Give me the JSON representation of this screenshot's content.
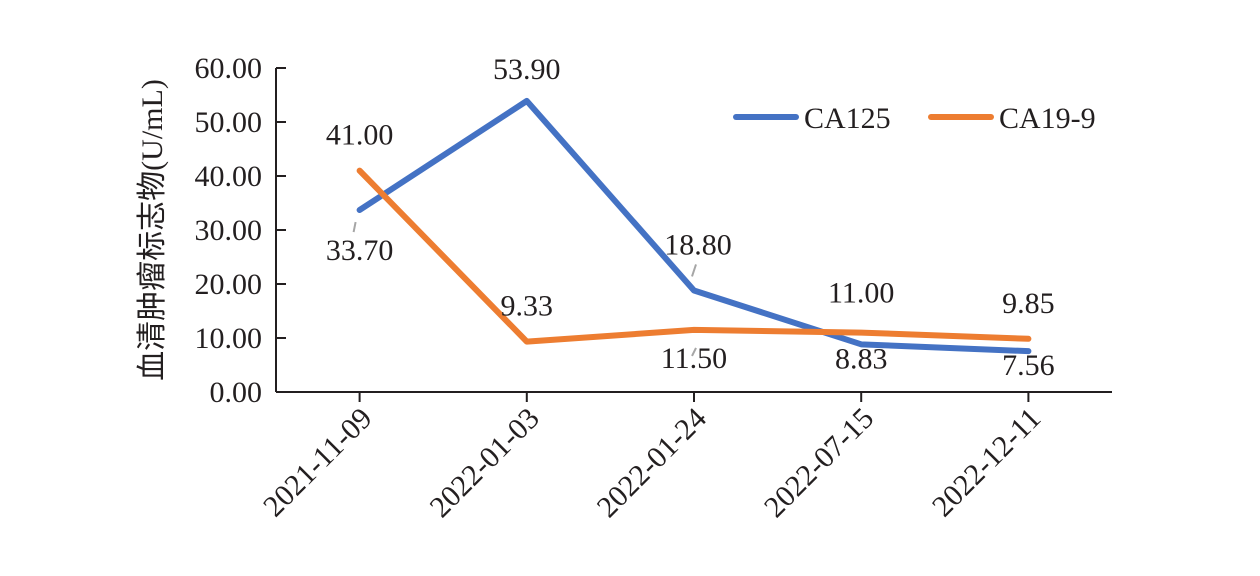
{
  "chart_data": {
    "type": "line",
    "title": "",
    "xlabel": "",
    "ylabel": "血清肿瘤标志物(U/mL)",
    "categories": [
      "2021-11-09",
      "2022-01-03",
      "2022-01-24",
      "2022-07-15",
      "2022-12-11"
    ],
    "ylim": [
      0,
      60
    ],
    "yticks": [
      "0.00",
      "10.00",
      "20.00",
      "30.00",
      "40.00",
      "50.00",
      "60.00"
    ],
    "grid": false,
    "legend_position": "top-right",
    "series": [
      {
        "name": "CA125",
        "color": "#4472c4",
        "values": [
          33.7,
          53.9,
          18.8,
          8.83,
          7.56
        ],
        "labels": [
          "33.70",
          "53.90",
          "18.80",
          "8.83",
          "7.56"
        ]
      },
      {
        "name": "CA19-9",
        "color": "#ed7d31",
        "values": [
          41.0,
          9.33,
          11.5,
          11.0,
          9.85
        ],
        "labels": [
          "41.00",
          "9.33",
          "11.50",
          "11.00",
          "9.85"
        ]
      }
    ]
  }
}
